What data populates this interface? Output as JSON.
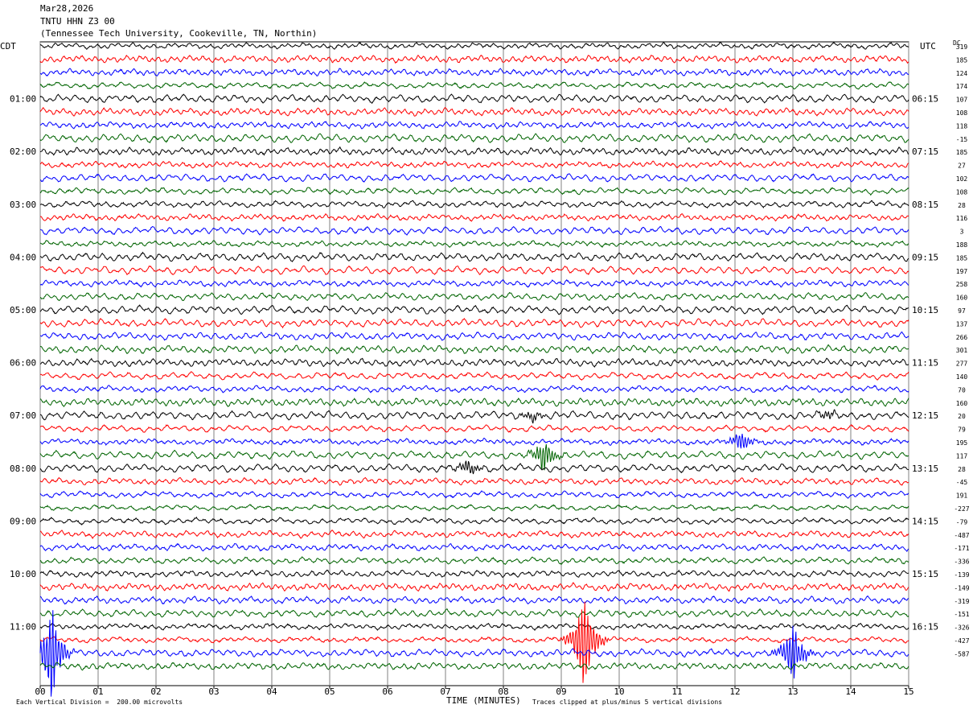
{
  "header": {
    "date": "Mar28,2026",
    "station": "TNTU HHN Z3 00",
    "location": "(Tennessee Tech University, Cookeville, TN, Northin)"
  },
  "labels": {
    "left_timezone": "CDT",
    "right_timezone": "UTC",
    "dc_label": "DC"
  },
  "footer": {
    "scale_note": "Each Vertical Division =  200.00 microvolts",
    "xlabel": "TIME (MINUTES)",
    "clip_note": "Traces clipped at plus/minus 5 vertical divisions"
  },
  "chart_data": {
    "type": "line",
    "title": "TNTU HHN Z3 00",
    "xlabel": "TIME (MINUTES)",
    "x_ticks": [
      "00",
      "01",
      "02",
      "03",
      "04",
      "05",
      "06",
      "07",
      "08",
      "09",
      "10",
      "11",
      "12",
      "13",
      "14",
      "15"
    ],
    "xlim": [
      0,
      15
    ],
    "grid": "vertical lines at each minute",
    "trace_count": 48,
    "trace_minutes": 15,
    "trace_colors": [
      "#000000",
      "#ff0000",
      "#0000ff",
      "#006400"
    ],
    "left_time_labels": [
      "01:00",
      "02:00",
      "03:00",
      "04:00",
      "05:00",
      "06:00",
      "07:00",
      "08:00",
      "09:00",
      "10:00",
      "11:00"
    ],
    "right_time_labels": [
      "06:15",
      "07:15",
      "08:15",
      "09:15",
      "10:15",
      "11:15",
      "12:15",
      "13:15",
      "14:15",
      "15:15",
      "16:15"
    ],
    "dc_offsets": [
      "319",
      "185",
      "124",
      "174",
      "107",
      "108",
      "118",
      "-15",
      "185",
      "27",
      "102",
      "108",
      "28",
      "116",
      "3",
      "188",
      "185",
      "197",
      "258",
      "160",
      "97",
      "137",
      "266",
      "301",
      "277",
      "140",
      "70",
      "160",
      "20",
      "79",
      "195",
      "117",
      "28",
      "-45",
      "191",
      "-227",
      "-79",
      "-487",
      "-171",
      "-336",
      "-139",
      "-149",
      "-319",
      "-151",
      "-326",
      "-427",
      "-587"
    ],
    "events": [
      {
        "trace": 28,
        "minute": 8.5,
        "amplitude": 0.35
      },
      {
        "trace": 28,
        "minute": 13.6,
        "amplitude": 0.3
      },
      {
        "trace": 30,
        "minute": 12.1,
        "amplitude": 0.7
      },
      {
        "trace": 31,
        "minute": 8.7,
        "amplitude": 1.1
      },
      {
        "trace": 32,
        "minute": 7.4,
        "amplitude": 0.5
      },
      {
        "trace": 45,
        "minute": 9.4,
        "amplitude": 3.5
      },
      {
        "trace": 46,
        "minute": 0.2,
        "amplitude": 3.0
      },
      {
        "trace": 46,
        "minute": 13.0,
        "amplitude": 2.0
      }
    ]
  }
}
